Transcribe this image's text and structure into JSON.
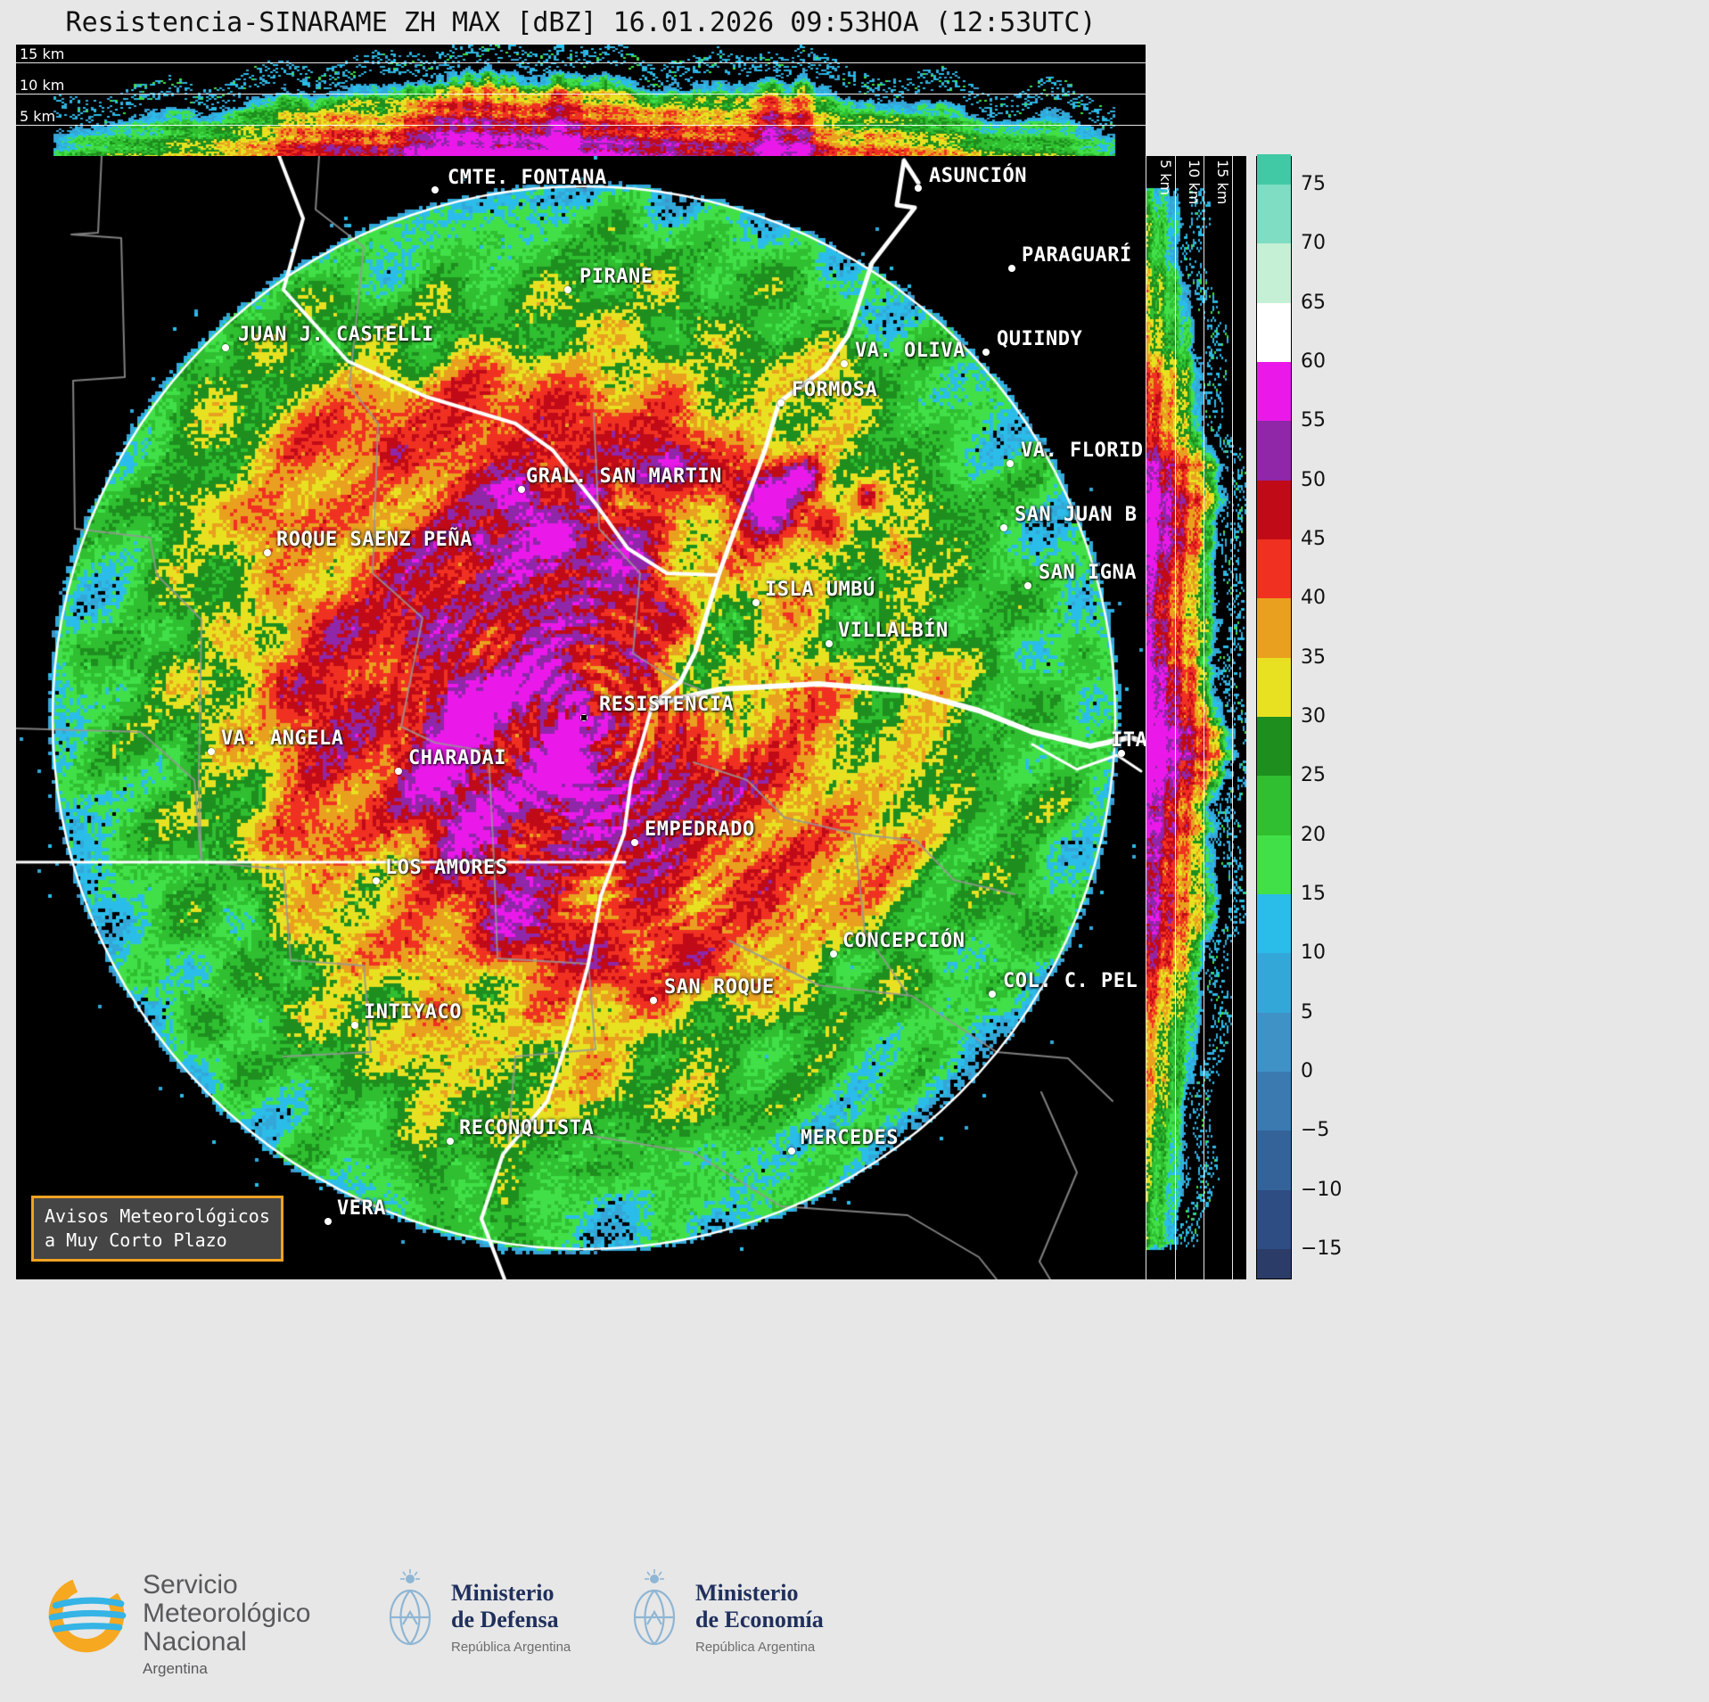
{
  "title": "Resistencia-SINARAME ZH MAX [dBZ] 16.01.2026 09:53HOA (12:53UTC)",
  "top_panel": {
    "height_labels": [
      "15 km",
      "10 km",
      "5 km"
    ]
  },
  "right_panel": {
    "height_labels": [
      "5 km",
      "10 km",
      "15 km"
    ]
  },
  "colorbar": {
    "unit": "dBZ",
    "ticks": [
      "75",
      "70",
      "65",
      "60",
      "55",
      "50",
      "45",
      "40",
      "35",
      "30",
      "25",
      "20",
      "15",
      "10",
      "5",
      "0",
      "−5",
      "−10",
      "−15"
    ],
    "palette": [
      {
        "v": -20,
        "c": "#2b3c68"
      },
      {
        "v": -15,
        "c": "#2e4d82"
      },
      {
        "v": -10,
        "c": "#346399"
      },
      {
        "v": -5,
        "c": "#3b7ab0"
      },
      {
        "v": 0,
        "c": "#3f92c6"
      },
      {
        "v": 5,
        "c": "#33a7d8"
      },
      {
        "v": 10,
        "c": "#2bbde9"
      },
      {
        "v": 15,
        "c": "#41e048"
      },
      {
        "v": 20,
        "c": "#2fbf30"
      },
      {
        "v": 25,
        "c": "#1e8f1f"
      },
      {
        "v": 30,
        "c": "#e8e121"
      },
      {
        "v": 35,
        "c": "#e9a01f"
      },
      {
        "v": 40,
        "c": "#f03122"
      },
      {
        "v": 45,
        "c": "#c10a18"
      },
      {
        "v": 50,
        "c": "#9026a8"
      },
      {
        "v": 55,
        "c": "#ea19ea"
      },
      {
        "v": 60,
        "c": "#ffffff"
      },
      {
        "v": 65,
        "c": "#c6f0d6"
      },
      {
        "v": 70,
        "c": "#7eddc2"
      },
      {
        "v": 75,
        "c": "#41c9a5"
      }
    ]
  },
  "map": {
    "radar_site": "RESISTENCIA",
    "cities": [
      {
        "label": "CMTE. FONTANA",
        "dot": [
          470,
          38
        ],
        "text": [
          484,
          12
        ]
      },
      {
        "label": "ASUNCIÓN",
        "dot": [
          1012,
          36
        ],
        "text": [
          1024,
          10
        ]
      },
      {
        "label": "PIRANE",
        "dot": [
          619,
          150
        ],
        "text": [
          632,
          123
        ]
      },
      {
        "label": "PARAGUARÍ",
        "dot": [
          1117,
          126
        ],
        "text": [
          1128,
          99
        ]
      },
      {
        "label": "JUAN J. CASTELLI",
        "dot": [
          235,
          215
        ],
        "text": [
          249,
          188
        ]
      },
      {
        "label": "VA. OLIVA",
        "dot": [
          929,
          233
        ],
        "text": [
          941,
          206
        ]
      },
      {
        "label": "QUIINDY",
        "dot": [
          1088,
          220
        ],
        "text": [
          1100,
          193
        ]
      },
      {
        "label": "FORMOSA",
        "dot": [
          858,
          277
        ],
        "text": [
          870,
          250
        ]
      },
      {
        "label": "GRAL. SAN MARTIN",
        "dot": [
          567,
          374
        ],
        "text": [
          572,
          347
        ]
      },
      {
        "label": "VA. FLORID",
        "dot": [
          1115,
          345
        ],
        "text": [
          1127,
          318
        ]
      },
      {
        "label": "SAN JUAN B",
        "dot": [
          1108,
          417
        ],
        "text": [
          1120,
          390
        ]
      },
      {
        "label": "ROQUE SAENZ PEÑA",
        "dot": [
          282,
          445
        ],
        "text": [
          292,
          418
        ]
      },
      {
        "label": "SAN IGNA",
        "dot": [
          1135,
          482
        ],
        "text": [
          1147,
          455
        ]
      },
      {
        "label": "ISLA UMBÚ",
        "dot": [
          830,
          501
        ],
        "text": [
          840,
          474
        ]
      },
      {
        "label": "VILLALBÍN",
        "dot": [
          912,
          547
        ],
        "text": [
          922,
          520
        ]
      },
      {
        "label": "RESISTENCIA",
        "dot": [
          637,
          630
        ],
        "text": [
          654,
          603
        ]
      },
      {
        "label": "VA. ANGELA",
        "dot": [
          219,
          668
        ],
        "text": [
          230,
          641
        ]
      },
      {
        "label": "CHARADAI",
        "dot": [
          429,
          690
        ],
        "text": [
          440,
          663
        ]
      },
      {
        "label": "ITA",
        "dot": [
          1240,
          670
        ],
        "text": [
          1228,
          643
        ]
      },
      {
        "label": "EMPEDRADO",
        "dot": [
          694,
          770
        ],
        "text": [
          705,
          743
        ]
      },
      {
        "label": "LOS AMORES",
        "dot": [
          404,
          813
        ],
        "text": [
          414,
          786
        ]
      },
      {
        "label": "CONCEPCIÓN",
        "dot": [
          917,
          895
        ],
        "text": [
          927,
          868
        ]
      },
      {
        "label": "SAN ROQUE",
        "dot": [
          715,
          947
        ],
        "text": [
          727,
          920
        ]
      },
      {
        "label": "COL. C. PEL",
        "dot": [
          1095,
          940
        ],
        "text": [
          1107,
          913
        ]
      },
      {
        "label": "INTIYACO",
        "dot": [
          380,
          975
        ],
        "text": [
          390,
          948
        ]
      },
      {
        "label": "RECONQUISTA",
        "dot": [
          487,
          1105
        ],
        "text": [
          497,
          1078
        ]
      },
      {
        "label": "MERCEDES",
        "dot": [
          870,
          1116
        ],
        "text": [
          880,
          1089
        ]
      },
      {
        "label": "VERA",
        "dot": [
          350,
          1195
        ],
        "text": [
          360,
          1168
        ]
      }
    ]
  },
  "warning_box": {
    "line1": "Avisos Meteorológicos",
    "line2": "a Muy Corto Plazo"
  },
  "footer": {
    "smn": {
      "line1": "Servicio",
      "line2": "Meteorológico",
      "line3": "Nacional",
      "sub": "Argentina"
    },
    "defensa": {
      "line1": "Ministerio",
      "line2": "de Defensa",
      "sub": "República Argentina"
    },
    "economia": {
      "line1": "Ministerio",
      "line2": "de Economía",
      "sub": "República Argentina"
    }
  }
}
